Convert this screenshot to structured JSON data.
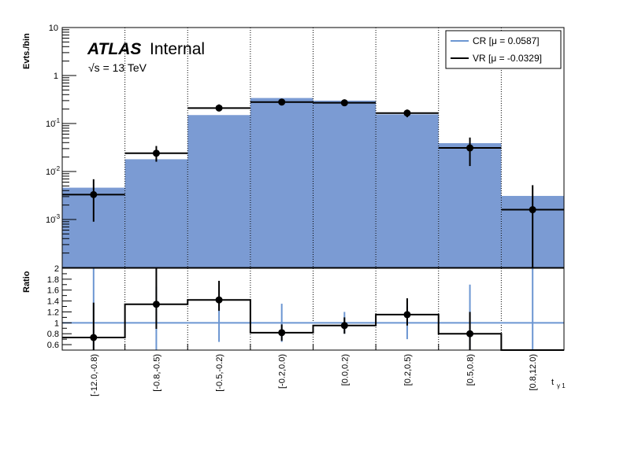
{
  "header": {
    "experiment": "ATLAS",
    "status": "Internal",
    "energy": "√s = 13 TeV"
  },
  "axes": {
    "top_ylabel": "Evts./bin",
    "bottom_ylabel": "Ratio",
    "xlabel_main": "t",
    "xlabel_sub": "γ 1",
    "top_ticks": [
      "10",
      "1",
      "10",
      "10",
      "10"
    ],
    "top_tick_exponents": [
      "",
      "",
      "-1",
      "-2",
      "-3"
    ],
    "ratio_ticks": [
      "2",
      "1.8",
      "1.6",
      "1.4",
      "1.2",
      "1",
      "0.8",
      "0.6"
    ]
  },
  "legend": {
    "entries": [
      {
        "label": "CR [μ = 0.0587]",
        "color": "#6c96d2"
      },
      {
        "label": "VR [μ = -0.0329]",
        "color": "#000000"
      }
    ]
  },
  "colors": {
    "fill": "#7b9bd3",
    "cr_line": "#6c96d2",
    "vr_line": "#000000"
  },
  "chart_data": {
    "type": "bar",
    "categories": [
      "[-12.0,-0.8)",
      "[-0.8,-0.5)",
      "[-0.5,-0.2)",
      "[-0.2,0.0)",
      "[0.0,0.2)",
      "[0.2,0.5)",
      "[0.5,0.8)",
      "[0.8,12.0)"
    ],
    "series": [
      {
        "name": "CR [μ = 0.0587]",
        "values": [
          0.0046,
          0.018,
          0.15,
          0.34,
          0.3,
          0.155,
          0.039,
          0.0031
        ]
      },
      {
        "name": "VR [μ = -0.0329]",
        "values": [
          0.0033,
          0.024,
          0.21,
          0.28,
          0.27,
          0.165,
          0.031,
          0.0016
        ],
        "err_low": [
          0.0024,
          0.008,
          0.03,
          0.02,
          0.02,
          0.03,
          0.018,
          0.00155
        ],
        "err_high": [
          0.0036,
          0.01,
          0.04,
          0.03,
          0.02,
          0.03,
          0.02,
          0.0036
        ]
      }
    ],
    "ylim": [
      0.0001,
      10
    ],
    "yscale": "log",
    "ratio": {
      "label": "Ratio",
      "ylim": [
        0.5,
        2
      ],
      "values": [
        0.73,
        1.34,
        1.42,
        0.82,
        0.95,
        1.15,
        0.8,
        0.5
      ],
      "err_low": [
        0.36,
        0.45,
        0.2,
        0.15,
        0.15,
        0.2,
        0.35,
        0.0
      ],
      "err_high": [
        0.64,
        0.66,
        0.35,
        0.15,
        0.15,
        0.3,
        0.4,
        0.0
      ],
      "cr_err": [
        1.0,
        0.66,
        0.35,
        0.35,
        0.2,
        0.3,
        0.7,
        1.5
      ],
      "reference": 1
    }
  }
}
